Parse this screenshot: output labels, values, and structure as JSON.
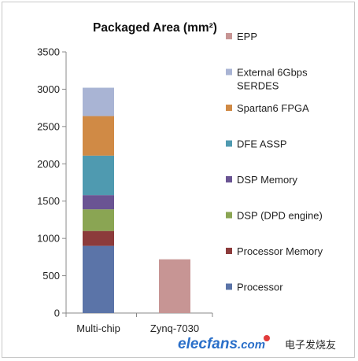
{
  "chart_data": {
    "type": "bar",
    "stacked": true,
    "title": "Packaged Area (mm²)",
    "categories": [
      "Multi-chip",
      "Zynq-7030"
    ],
    "ylim": [
      0,
      3500
    ],
    "yticks": [
      0,
      500,
      1000,
      1500,
      2000,
      2500,
      3000,
      3500
    ],
    "grid": false,
    "legend_position": "right",
    "series": [
      {
        "name": "Processor",
        "color": "#5b74a8",
        "values": [
          900,
          0
        ]
      },
      {
        "name": "Processor Memory",
        "color": "#8c3b3b",
        "values": [
          200,
          0
        ]
      },
      {
        "name": "DSP (DPD engine)",
        "color": "#8aa553",
        "values": [
          290,
          0
        ]
      },
      {
        "name": "DSP Memory",
        "color": "#6a5493",
        "values": [
          190,
          0
        ]
      },
      {
        "name": "DFE ASSP",
        "color": "#4f9ab0",
        "values": [
          530,
          0
        ]
      },
      {
        "name": "Spartan6 FPGA",
        "color": "#d08a45",
        "values": [
          530,
          0
        ]
      },
      {
        "name": "External 6Gbps SERDES",
        "color": "#a9b4d4",
        "values": [
          380,
          0
        ]
      },
      {
        "name": "EPP",
        "color": "#c79594",
        "values": [
          0,
          720
        ]
      }
    ],
    "legend_order": [
      "EPP",
      "External 6Gbps SERDES",
      "Spartan6 FPGA",
      "DFE ASSP",
      "DSP Memory",
      "DSP (DPD engine)",
      "Processor Memory",
      "Processor"
    ]
  },
  "watermark": {
    "brand": "elecfans",
    "suffix": ".com",
    "chinese": "电子发烧友"
  }
}
